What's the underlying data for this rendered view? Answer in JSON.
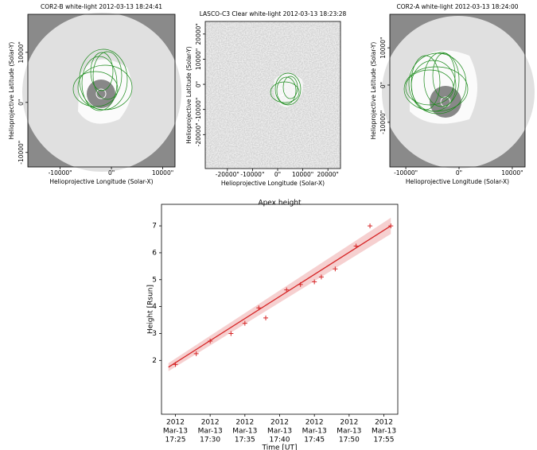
{
  "chart_data": [
    {
      "type": "image",
      "title": "COR2-B white-light 2012-03-13 18:24:41",
      "xlabel": "Helioprojective Longitude (Solar-X)",
      "ylabel": "Helioprojective Latitude (Solar-Y)",
      "xlim": [
        -16300,
        12400
      ],
      "ylim": [
        -12900,
        17600
      ],
      "xticks": [
        {
          "value": -10000,
          "label": "-10000\""
        },
        {
          "value": 0,
          "label": "0\""
        },
        {
          "value": 10000,
          "label": "10000\""
        }
      ],
      "yticks": [
        {
          "value": -10000,
          "label": "-10000\""
        },
        {
          "value": 0,
          "label": "0\""
        },
        {
          "value": 10000,
          "label": "10000\""
        }
      ]
    },
    {
      "type": "image",
      "title": "LASCO-C3 Clear white-light 2012-03-13 18:23:28",
      "xlabel": "Helioprojective Longitude (Solar-X)",
      "ylabel": "Helioprojective Latitude (Solar-Y)",
      "xlim": [
        -28800,
        25000
      ],
      "ylim": [
        -33500,
        25000
      ],
      "xticks": [
        {
          "value": -20000,
          "label": "-20000\""
        },
        {
          "value": -10000,
          "label": "-10000\""
        },
        {
          "value": 0,
          "label": "0\""
        },
        {
          "value": 10000,
          "label": "10000\""
        },
        {
          "value": 20000,
          "label": "20000\""
        }
      ],
      "yticks": [
        {
          "value": -20000,
          "label": "-20000\""
        },
        {
          "value": -10000,
          "label": "-10000\""
        },
        {
          "value": 0,
          "label": "0\""
        },
        {
          "value": 10000,
          "label": "10000\""
        },
        {
          "value": 20000,
          "label": "20000\""
        }
      ]
    },
    {
      "type": "image",
      "title": "COR2-A white-light 2012-03-13 18:24:00",
      "xlabel": "Helioprojective Longitude (Solar-X)",
      "ylabel": "Helioprojective Latitude (Solar-Y)",
      "xlim": [
        -13000,
        12400
      ],
      "ylim": [
        -22000,
        19000
      ],
      "xticks": [
        {
          "value": -10000,
          "label": "-10000\""
        },
        {
          "value": 0,
          "label": "0\""
        },
        {
          "value": 10000,
          "label": "10000\""
        }
      ],
      "yticks": [
        {
          "value": -10000,
          "label": "-10000\""
        },
        {
          "value": 0,
          "label": "0\""
        },
        {
          "value": 10000,
          "label": "10000\""
        }
      ]
    },
    {
      "type": "scatter",
      "title": "Apex height",
      "xlabel": "Time [UT]",
      "ylabel": "Height [Rsun]",
      "color": "#d62728",
      "x": [
        "2012-03-13 17:25",
        "2012-03-13 17:28",
        "2012-03-13 17:30",
        "2012-03-13 17:33",
        "2012-03-13 17:35",
        "2012-03-13 17:37",
        "2012-03-13 17:38",
        "2012-03-13 17:41",
        "2012-03-13 17:43",
        "2012-03-13 17:45",
        "2012-03-13 17:46",
        "2012-03-13 17:48",
        "2012-03-13 17:51",
        "2012-03-13 17:53",
        "2012-03-13 17:56"
      ],
      "values": [
        1.85,
        2.25,
        2.72,
        3.0,
        3.38,
        3.95,
        3.58,
        4.62,
        4.82,
        4.92,
        5.1,
        5.4,
        6.25,
        7.0,
        7.0
      ],
      "fit": {
        "x": [
          "2012-03-13 17:24",
          "2012-03-13 17:56"
        ],
        "values": [
          1.75,
          7.0
        ],
        "lower": [
          1.6,
          6.7
        ],
        "upper": [
          1.9,
          7.3
        ]
      },
      "xlim": [
        "2012-03-13 17:23",
        "2012-03-13 17:57"
      ],
      "ylim": [
        0,
        7.8
      ],
      "xticks": [
        {
          "value": "2012-03-13 17:25",
          "label": [
            "2012",
            "Mar-13",
            "17:25"
          ]
        },
        {
          "value": "2012-03-13 17:30",
          "label": [
            "2012",
            "Mar-13",
            "17:30"
          ]
        },
        {
          "value": "2012-03-13 17:35",
          "label": [
            "2012",
            "Mar-13",
            "17:35"
          ]
        },
        {
          "value": "2012-03-13 17:40",
          "label": [
            "2012",
            "Mar-13",
            "17:40"
          ]
        },
        {
          "value": "2012-03-13 17:45",
          "label": [
            "2012",
            "Mar-13",
            "17:45"
          ]
        },
        {
          "value": "2012-03-13 17:50",
          "label": [
            "2012",
            "Mar-13",
            "17:50"
          ]
        },
        {
          "value": "2012-03-13 17:55",
          "label": [
            "2012",
            "Mar-13",
            "17:55"
          ]
        }
      ],
      "yticks": [
        2,
        3,
        4,
        5,
        6,
        7
      ]
    }
  ]
}
